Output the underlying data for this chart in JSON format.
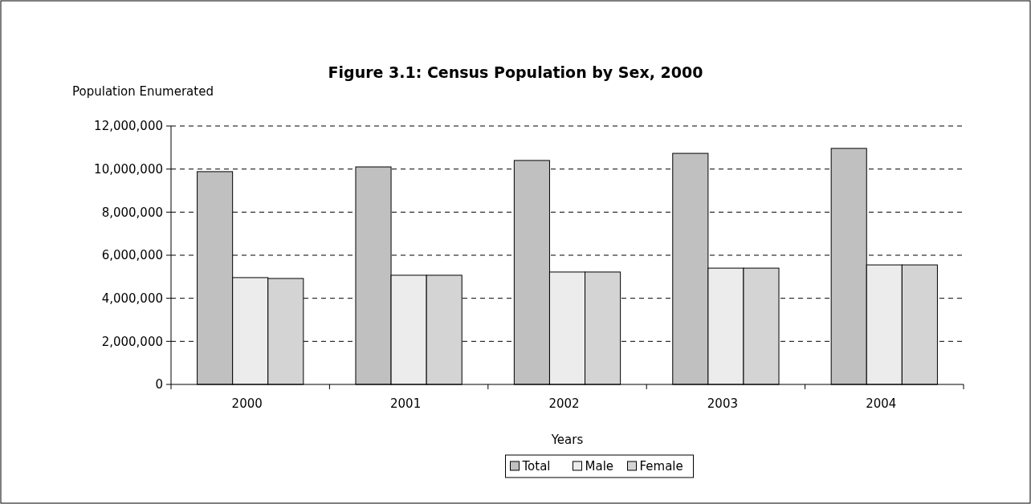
{
  "chart_data": {
    "type": "bar",
    "title": "Figure 3.1:  Census Population by Sex, 2000",
    "ylabel": "Population Enumerated",
    "xlabel": "Years",
    "categories": [
      "2000",
      "2001",
      "2002",
      "2003",
      "2004"
    ],
    "series": [
      {
        "name": "Total",
        "color": "#c0c0c0",
        "values": [
          9880000,
          10100000,
          10400000,
          10730000,
          10960000
        ]
      },
      {
        "name": "Male",
        "color": "#ececec",
        "values": [
          4960000,
          5070000,
          5220000,
          5400000,
          5550000
        ]
      },
      {
        "name": "Female",
        "color": "#d4d4d4",
        "values": [
          4920000,
          5070000,
          5220000,
          5400000,
          5550000
        ]
      }
    ],
    "ylim": [
      0,
      12000000
    ],
    "yticks": [
      {
        "value": 0,
        "label": "0"
      },
      {
        "value": 2000000,
        "label": "2,000,000"
      },
      {
        "value": 4000000,
        "label": "4,000,000"
      },
      {
        "value": 6000000,
        "label": "6,000,000"
      },
      {
        "value": 8000000,
        "label": "8,000,000"
      },
      {
        "value": 10000000,
        "label": "10,000,000"
      },
      {
        "value": 12000000,
        "label": "12,000,000"
      }
    ],
    "grid": "y",
    "legend": "bottom"
  }
}
